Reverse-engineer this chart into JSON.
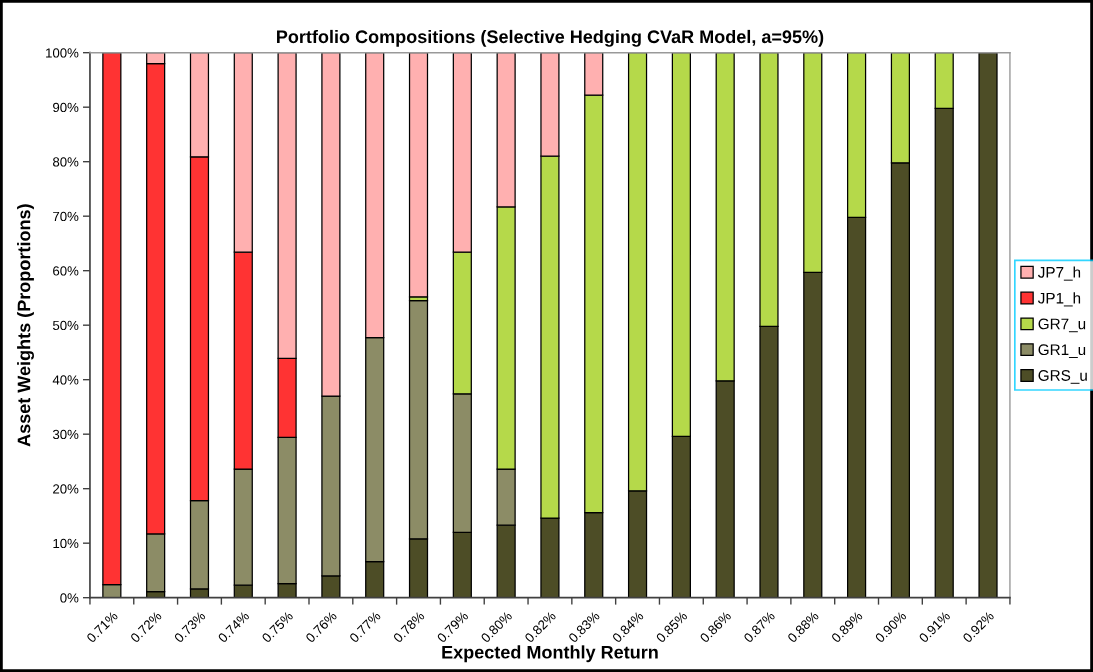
{
  "chart_data": {
    "type": "bar",
    "stacked": true,
    "title": "Portfolio Compositions (Selective Hedging CVaR Model, a=95%)",
    "xlabel": "Expected Monthly Return",
    "ylabel": "Asset Weights (Proportions)",
    "categories": [
      "0.71%",
      "0.72%",
      "0.73%",
      "0.74%",
      "0.75%",
      "0.76%",
      "0.77%",
      "0.78%",
      "0.79%",
      "0.80%",
      "0.82%",
      "0.83%",
      "0.84%",
      "0.85%",
      "0.86%",
      "0.87%",
      "0.88%",
      "0.89%",
      "0.90%",
      "0.91%",
      "0.92%"
    ],
    "series": [
      {
        "name": "GRS_u",
        "color": "#4d4d26",
        "values": [
          null,
          1.1,
          1.6,
          2.3,
          2.6,
          4.0,
          6.6,
          10.8,
          12.0,
          13.3,
          14.6,
          15.6,
          19.6,
          29.6,
          39.8,
          49.8,
          59.7,
          69.8,
          79.8,
          89.8,
          100
        ]
      },
      {
        "name": "GR1_u",
        "color": "#8c8c66",
        "values": [
          2.4,
          10.6,
          16.2,
          21.3,
          26.8,
          33.0,
          41.1,
          43.7,
          25.4,
          10.3,
          null,
          null,
          null,
          null,
          null,
          null,
          null,
          null,
          null,
          null,
          null
        ]
      },
      {
        "name": "GR7_u",
        "color": "#b5d94a",
        "values": [
          null,
          null,
          null,
          null,
          null,
          null,
          null,
          0.7,
          26.0,
          48.1,
          66.4,
          76.6,
          80.4,
          70.4,
          60.2,
          50.2,
          40.3,
          30.2,
          20.2,
          10.2,
          null
        ]
      },
      {
        "name": "JP1_h",
        "color": "#ff3333",
        "values": [
          97.6,
          86.3,
          63.1,
          39.8,
          14.5,
          null,
          null,
          null,
          null,
          null,
          null,
          null,
          null,
          null,
          null,
          null,
          null,
          null,
          null,
          null,
          null
        ]
      },
      {
        "name": "JP7_h",
        "color": "#ffb0b0",
        "values": [
          null,
          2.0,
          19.1,
          36.6,
          56.1,
          63.0,
          52.3,
          44.8,
          36.6,
          28.3,
          19.0,
          7.8,
          null,
          null,
          null,
          null,
          null,
          null,
          null,
          null,
          null
        ]
      }
    ],
    "ylim": [
      0,
      100
    ],
    "yticks": [
      {
        "value": 0,
        "label": "0%"
      },
      {
        "value": 10,
        "label": "10%"
      },
      {
        "value": 20,
        "label": "20%"
      },
      {
        "value": 30,
        "label": "30%"
      },
      {
        "value": 40,
        "label": "40%"
      },
      {
        "value": 50,
        "label": "50%"
      },
      {
        "value": 60,
        "label": "60%"
      },
      {
        "value": 70,
        "label": "70%"
      },
      {
        "value": 80,
        "label": "80%"
      },
      {
        "value": 90,
        "label": "90%"
      },
      {
        "value": 100,
        "label": "100%"
      }
    ],
    "grid": false,
    "legend": "right"
  }
}
